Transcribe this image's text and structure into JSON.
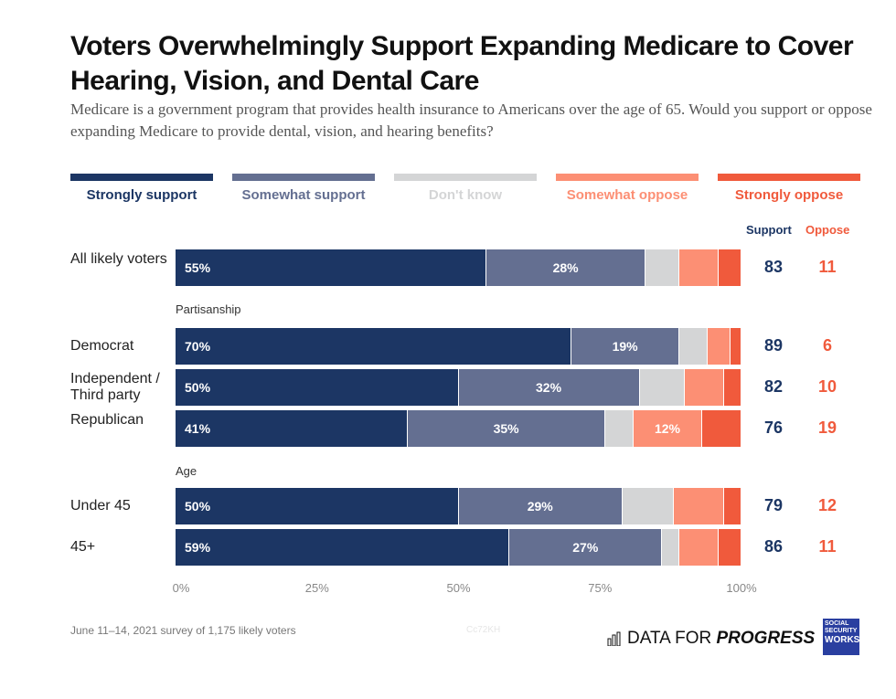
{
  "title": "Voters Overwhelmingly Support Expanding Medicare to Cover Hearing, Vision, and Dental Care",
  "subtitle": "Medicare is a government program that provides health insurance to Americans over the age of 65. Would you support or oppose expanding Medicare to provide dental, vision, and hearing benefits?",
  "chart_data": {
    "type": "bar",
    "orientation": "horizontal-stacked",
    "xlim": [
      0,
      100
    ],
    "ticks": [
      "0%",
      "25%",
      "50%",
      "75%",
      "100%"
    ],
    "legend_placement": "top",
    "series": [
      {
        "name": "Strongly support",
        "color": "#1c3664"
      },
      {
        "name": "Somewhat support",
        "color": "#646f91"
      },
      {
        "name": "Don't know",
        "color": "#d4d5d6"
      },
      {
        "name": "Somewhat oppose",
        "color": "#fc8f74"
      },
      {
        "name": "Strongly oppose",
        "color": "#f05a3c"
      }
    ],
    "summary_headers": {
      "support": "Support",
      "oppose": "Oppose"
    },
    "groups": [
      {
        "label": "",
        "rows": [
          {
            "label": "All likely voters",
            "values": [
              55,
              28,
              6,
              7,
              4
            ],
            "labels": [
              "55%",
              "28%",
              "",
              "",
              ""
            ],
            "support": 83,
            "oppose": 11
          }
        ]
      },
      {
        "label": "Partisanship",
        "rows": [
          {
            "label": "Democrat",
            "values": [
              70,
              19,
              5,
              4,
              2
            ],
            "labels": [
              "70%",
              "19%",
              "",
              "",
              ""
            ],
            "support": 89,
            "oppose": 6
          },
          {
            "label": "Independent / Third party",
            "values": [
              50,
              32,
              8,
              7,
              3
            ],
            "labels": [
              "50%",
              "32%",
              "",
              "",
              ""
            ],
            "support": 82,
            "oppose": 10
          },
          {
            "label": "Republican",
            "values": [
              41,
              35,
              5,
              12,
              7
            ],
            "labels": [
              "41%",
              "35%",
              "",
              "12%",
              ""
            ],
            "support": 76,
            "oppose": 19
          }
        ]
      },
      {
        "label": "Age",
        "rows": [
          {
            "label": "Under 45",
            "values": [
              50,
              29,
              9,
              9,
              3
            ],
            "labels": [
              "50%",
              "29%",
              "",
              "",
              ""
            ],
            "support": 79,
            "oppose": 12
          },
          {
            "label": "45+",
            "values": [
              59,
              27,
              3,
              7,
              4
            ],
            "labels": [
              "59%",
              "27%",
              "",
              "",
              ""
            ],
            "support": 86,
            "oppose": 11
          }
        ]
      }
    ]
  },
  "footer": {
    "note": "June 11–14, 2021 survey of 1,175 likely voters",
    "watermark": "Cc72KH",
    "logo": "DATA FOR PROGRESS",
    "logo2": "SOCIAL SECURITY WORKS."
  }
}
